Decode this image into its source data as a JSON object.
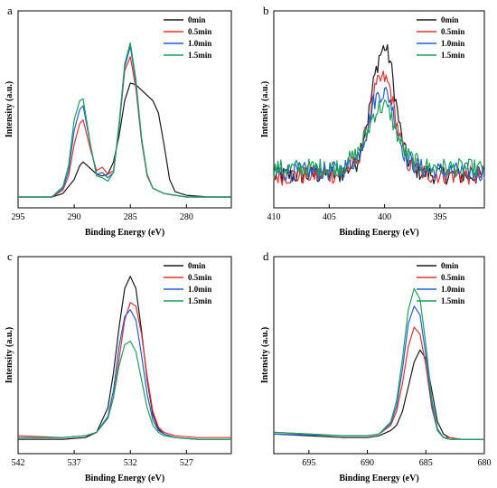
{
  "colors": {
    "0min": "#1a1a1a",
    "0.5min": "#e8302f",
    "1.0min": "#1f5fd6",
    "1.5min": "#1ca15b"
  },
  "chart_data": [
    {
      "id": "a",
      "type": "line",
      "panel_label": "a",
      "xlabel": "Binding Energy (eV)",
      "ylabel": "Intensity (a.u.)",
      "xlim": [
        295,
        276
      ],
      "xticks": [
        295,
        290,
        285,
        280
      ],
      "legend_position": "top-right",
      "series": [
        {
          "name": "0min",
          "x": [
            295,
            292,
            291,
            290,
            289.5,
            289.2,
            288.5,
            288,
            287.5,
            287,
            286.5,
            286,
            285.5,
            285,
            284.5,
            284,
            283.5,
            283,
            282.5,
            282,
            281.5,
            281,
            280,
            278,
            276
          ],
          "y": [
            0.0,
            0.0,
            0.02,
            0.1,
            0.18,
            0.2,
            0.16,
            0.13,
            0.12,
            0.13,
            0.2,
            0.35,
            0.55,
            0.65,
            0.64,
            0.61,
            0.58,
            0.55,
            0.48,
            0.3,
            0.1,
            0.03,
            0.01,
            0.0,
            0.0
          ]
        },
        {
          "name": "0.5min",
          "x": [
            295,
            292,
            291,
            290.5,
            290,
            289.5,
            289.2,
            288.5,
            288,
            287.5,
            287,
            286.5,
            286,
            285.5,
            285,
            284.5,
            284,
            283.5,
            283,
            282,
            281,
            280,
            278,
            276
          ],
          "y": [
            0.0,
            0.0,
            0.04,
            0.12,
            0.3,
            0.42,
            0.44,
            0.26,
            0.15,
            0.17,
            0.13,
            0.15,
            0.4,
            0.72,
            0.8,
            0.62,
            0.32,
            0.12,
            0.05,
            0.02,
            0.01,
            0.0,
            0.0,
            0.0
          ]
        },
        {
          "name": "1.0min",
          "x": [
            295,
            292,
            291,
            290.5,
            290,
            289.5,
            289.2,
            288.5,
            288,
            287.5,
            287,
            286.5,
            286,
            285.5,
            285,
            284.5,
            284,
            283.5,
            283,
            282,
            281,
            280,
            278,
            276
          ],
          "y": [
            0.0,
            0.0,
            0.05,
            0.15,
            0.38,
            0.5,
            0.52,
            0.28,
            0.13,
            0.14,
            0.11,
            0.14,
            0.4,
            0.74,
            0.86,
            0.65,
            0.33,
            0.13,
            0.05,
            0.02,
            0.01,
            0.0,
            0.0,
            0.0
          ]
        },
        {
          "name": "1.5min",
          "x": [
            295,
            292,
            291,
            290.5,
            290,
            289.5,
            289.2,
            288.5,
            288,
            287.5,
            287,
            286.5,
            286,
            285.5,
            285,
            284.5,
            284,
            283.5,
            283,
            282,
            281,
            280,
            278,
            276
          ],
          "y": [
            0.0,
            0.0,
            0.06,
            0.18,
            0.44,
            0.55,
            0.56,
            0.28,
            0.12,
            0.11,
            0.09,
            0.14,
            0.42,
            0.76,
            0.88,
            0.67,
            0.34,
            0.13,
            0.05,
            0.02,
            0.01,
            0.0,
            0.0,
            0.0
          ]
        }
      ]
    },
    {
      "id": "b",
      "type": "line",
      "panel_label": "b",
      "xlabel": "Binding Energy (eV)",
      "ylabel": "Intensity (a.u.)",
      "xlim": [
        410,
        391
      ],
      "xticks": [
        410,
        405,
        400,
        395
      ],
      "legend_position": "top-right",
      "noisy": true,
      "series": [
        {
          "name": "0min",
          "x": [
            410,
            404,
            402.5,
            401.5,
            401,
            400.5,
            400,
            399.5,
            399,
            398.5,
            398,
            397,
            396,
            391
          ],
          "y": [
            0.12,
            0.13,
            0.2,
            0.45,
            0.65,
            0.8,
            0.86,
            0.78,
            0.55,
            0.35,
            0.22,
            0.15,
            0.13,
            0.12
          ]
        },
        {
          "name": "0.5min",
          "x": [
            410,
            404,
            402.5,
            401.5,
            401,
            400.5,
            400,
            399.5,
            399,
            398.5,
            398,
            397,
            396,
            391
          ],
          "y": [
            0.12,
            0.13,
            0.2,
            0.4,
            0.58,
            0.66,
            0.68,
            0.62,
            0.45,
            0.3,
            0.2,
            0.15,
            0.13,
            0.12
          ]
        },
        {
          "name": "1.0min",
          "x": [
            410,
            404,
            402.5,
            401.5,
            401,
            400.5,
            400,
            399.5,
            399,
            398.5,
            398,
            397,
            396,
            391
          ],
          "y": [
            0.14,
            0.15,
            0.22,
            0.4,
            0.54,
            0.59,
            0.6,
            0.56,
            0.42,
            0.3,
            0.22,
            0.17,
            0.15,
            0.14
          ]
        },
        {
          "name": "1.5min",
          "x": [
            410,
            404,
            402.5,
            401.5,
            401,
            400.5,
            400,
            399.5,
            399,
            398.5,
            398,
            397,
            396,
            391
          ],
          "y": [
            0.16,
            0.17,
            0.24,
            0.38,
            0.47,
            0.51,
            0.52,
            0.48,
            0.38,
            0.3,
            0.24,
            0.19,
            0.17,
            0.16
          ]
        }
      ]
    },
    {
      "id": "c",
      "type": "line",
      "panel_label": "c",
      "xlabel": "Binding Energy (eV)",
      "ylabel": "Intensity (a.u.)",
      "xlim": [
        542,
        523
      ],
      "xticks": [
        542,
        537,
        532,
        527
      ],
      "legend_position": "top-right",
      "series": [
        {
          "name": "0min",
          "x": [
            542,
            538,
            536,
            535,
            534,
            533.5,
            533,
            532.5,
            532,
            531.5,
            531,
            530.5,
            530,
            529.5,
            529,
            528,
            526,
            523
          ],
          "y": [
            0.02,
            0.02,
            0.03,
            0.06,
            0.2,
            0.4,
            0.66,
            0.88,
            0.95,
            0.88,
            0.64,
            0.36,
            0.16,
            0.08,
            0.05,
            0.03,
            0.02,
            0.02
          ]
        },
        {
          "name": "0.5min",
          "x": [
            542,
            538,
            536,
            535,
            534,
            533.5,
            533,
            532.5,
            532,
            531.5,
            531,
            530.5,
            530,
            529.5,
            529,
            528,
            526,
            523
          ],
          "y": [
            0.04,
            0.03,
            0.04,
            0.06,
            0.14,
            0.26,
            0.48,
            0.7,
            0.8,
            0.78,
            0.62,
            0.38,
            0.18,
            0.09,
            0.06,
            0.04,
            0.03,
            0.03
          ]
        },
        {
          "name": "1.0min",
          "x": [
            542,
            538,
            536,
            535,
            534,
            533.5,
            533,
            532.5,
            532,
            531.5,
            531,
            530.5,
            530,
            529.5,
            529,
            528,
            526,
            523
          ],
          "y": [
            0.03,
            0.03,
            0.04,
            0.06,
            0.15,
            0.3,
            0.55,
            0.72,
            0.76,
            0.7,
            0.5,
            0.28,
            0.13,
            0.07,
            0.05,
            0.03,
            0.02,
            0.02
          ]
        },
        {
          "name": "1.5min",
          "x": [
            542,
            538,
            536,
            535,
            534,
            533.5,
            533,
            532.5,
            532,
            531.5,
            531,
            530.5,
            530,
            529.5,
            529,
            528,
            526,
            523
          ],
          "y": [
            0.03,
            0.03,
            0.04,
            0.06,
            0.14,
            0.26,
            0.44,
            0.56,
            0.58,
            0.52,
            0.36,
            0.2,
            0.1,
            0.06,
            0.04,
            0.03,
            0.02,
            0.02
          ]
        }
      ]
    },
    {
      "id": "d",
      "type": "line",
      "panel_label": "d",
      "xlabel": "Binding Energy (eV)",
      "ylabel": "Intensity (a.u.)",
      "xlim": [
        698,
        680
      ],
      "xticks": [
        695,
        690,
        685,
        680
      ],
      "legend_position": "top-right",
      "series": [
        {
          "name": "0min",
          "x": [
            698,
            692,
            690,
            689,
            688,
            687.5,
            687,
            686.5,
            686,
            685.5,
            685,
            684.5,
            684,
            683.5,
            683,
            682,
            681,
            680
          ],
          "y": [
            0.05,
            0.03,
            0.03,
            0.04,
            0.07,
            0.1,
            0.18,
            0.32,
            0.46,
            0.53,
            0.48,
            0.3,
            0.12,
            0.05,
            0.03,
            0.02,
            0.02,
            0.02
          ]
        },
        {
          "name": "0.5min",
          "x": [
            698,
            692,
            690,
            689,
            688,
            687.5,
            687,
            686.5,
            686,
            685.5,
            685,
            684.5,
            684,
            683.5,
            683,
            682,
            681,
            680
          ],
          "y": [
            0.06,
            0.04,
            0.04,
            0.05,
            0.1,
            0.18,
            0.34,
            0.55,
            0.66,
            0.62,
            0.44,
            0.2,
            0.07,
            0.03,
            0.03,
            0.02,
            0.02,
            0.02
          ]
        },
        {
          "name": "1.0min",
          "x": [
            698,
            692,
            690,
            689,
            688,
            687.5,
            687,
            686.5,
            686,
            685.5,
            685,
            684.5,
            684,
            683.5,
            683,
            682,
            681,
            680
          ],
          "y": [
            0.05,
            0.04,
            0.04,
            0.05,
            0.11,
            0.21,
            0.42,
            0.68,
            0.78,
            0.73,
            0.5,
            0.22,
            0.07,
            0.03,
            0.02,
            0.02,
            0.02,
            0.02
          ]
        },
        {
          "name": "1.5min",
          "x": [
            698,
            692,
            690,
            689,
            688,
            687.5,
            687,
            686.5,
            686,
            685.5,
            685,
            684.5,
            684,
            683.5,
            683,
            682,
            681,
            680
          ],
          "y": [
            0.06,
            0.04,
            0.04,
            0.05,
            0.12,
            0.24,
            0.48,
            0.76,
            0.88,
            0.82,
            0.56,
            0.25,
            0.08,
            0.03,
            0.02,
            0.02,
            0.02,
            0.02
          ]
        }
      ]
    }
  ]
}
